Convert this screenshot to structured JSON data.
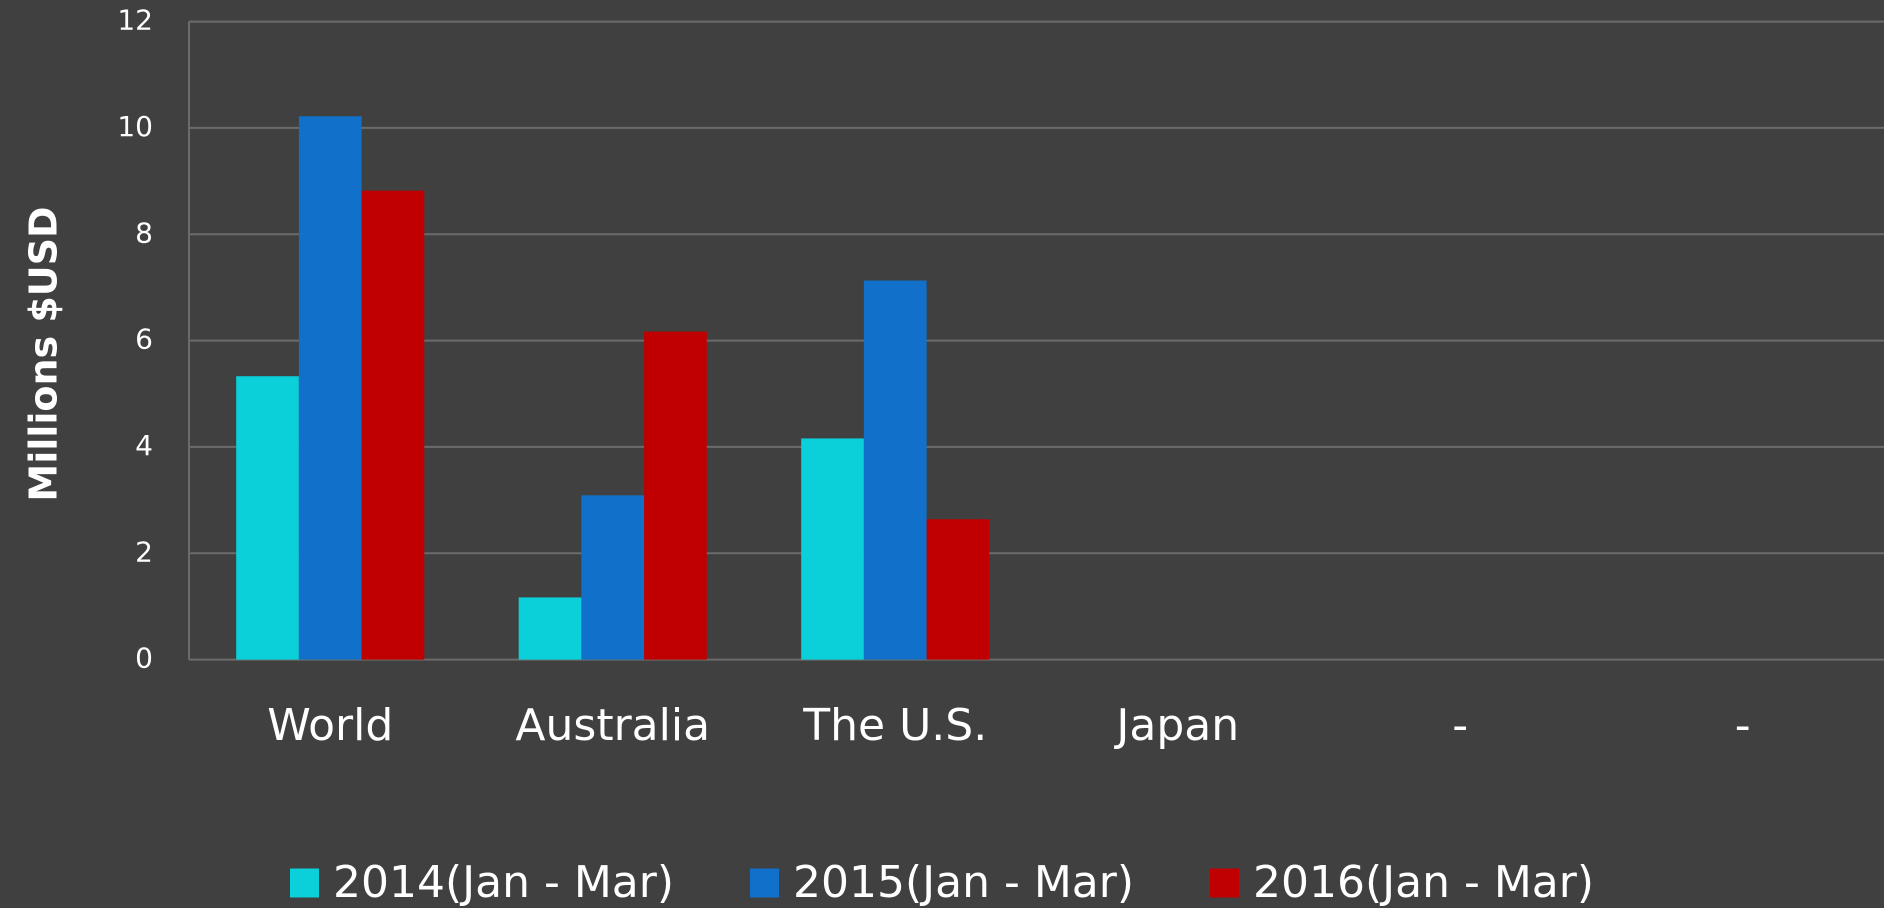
{
  "chart_data": {
    "type": "bar",
    "y_label": "Millions $USD",
    "categories": [
      "World",
      "Australia",
      "The U.S.",
      "Japan",
      "-",
      "-"
    ],
    "series": [
      {
        "name": "2014(Jan - Mar)",
        "color": "#0bcfd9",
        "values": [
          5.33,
          1.17,
          4.16,
          null,
          null,
          null
        ]
      },
      {
        "name": "2015(Jan - Mar)",
        "color": "#1170c9",
        "values": [
          10.22,
          3.09,
          7.13,
          null,
          null,
          null
        ]
      },
      {
        "name": "2016(Jan - Mar)",
        "color": "#c00000",
        "values": [
          8.82,
          6.17,
          2.64,
          null,
          null,
          null
        ]
      }
    ],
    "ylim": [
      0,
      12
    ],
    "yticks": [
      0,
      2,
      4,
      6,
      8,
      10,
      12
    ],
    "grid": true,
    "legend": "bottom"
  }
}
